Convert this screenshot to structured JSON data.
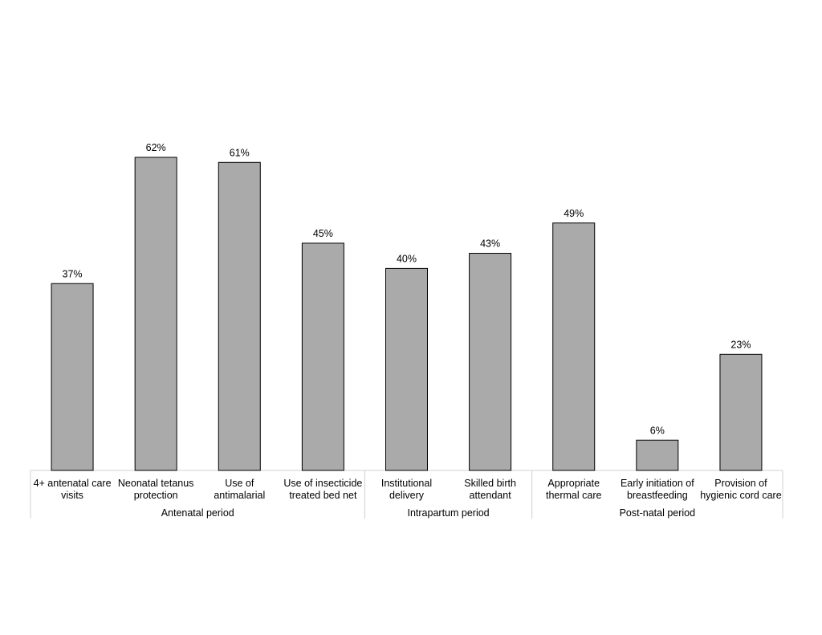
{
  "chart_data": {
    "type": "bar",
    "categories": [
      [
        "4+ antenatal care",
        "visits"
      ],
      [
        "Neonatal tetanus",
        "protection"
      ],
      [
        "Use of",
        "antimalarial"
      ],
      [
        "Use of insecticide",
        "treated bed net"
      ],
      [
        "Institutional",
        "delivery"
      ],
      [
        "Skilled birth",
        "attendant"
      ],
      [
        "Appropriate",
        "thermal care"
      ],
      [
        "Early initiation of",
        "breastfeeding"
      ],
      [
        "Provision of",
        "hygienic cord care"
      ]
    ],
    "values": [
      37,
      62,
      61,
      45,
      40,
      43,
      49,
      6,
      23
    ],
    "value_labels": [
      "37%",
      "62%",
      "61%",
      "45%",
      "40%",
      "43%",
      "49%",
      "6%",
      "23%"
    ],
    "groups": [
      {
        "label": "Antenatal period",
        "span": 4
      },
      {
        "label": "Intrapartum period",
        "span": 2
      },
      {
        "label": "Post-natal period",
        "span": 3
      }
    ],
    "ylim": [
      0,
      62
    ],
    "colors": {
      "bar": "#aaaaaa",
      "outline": "#000000",
      "axis": "#d0d0d0"
    }
  }
}
